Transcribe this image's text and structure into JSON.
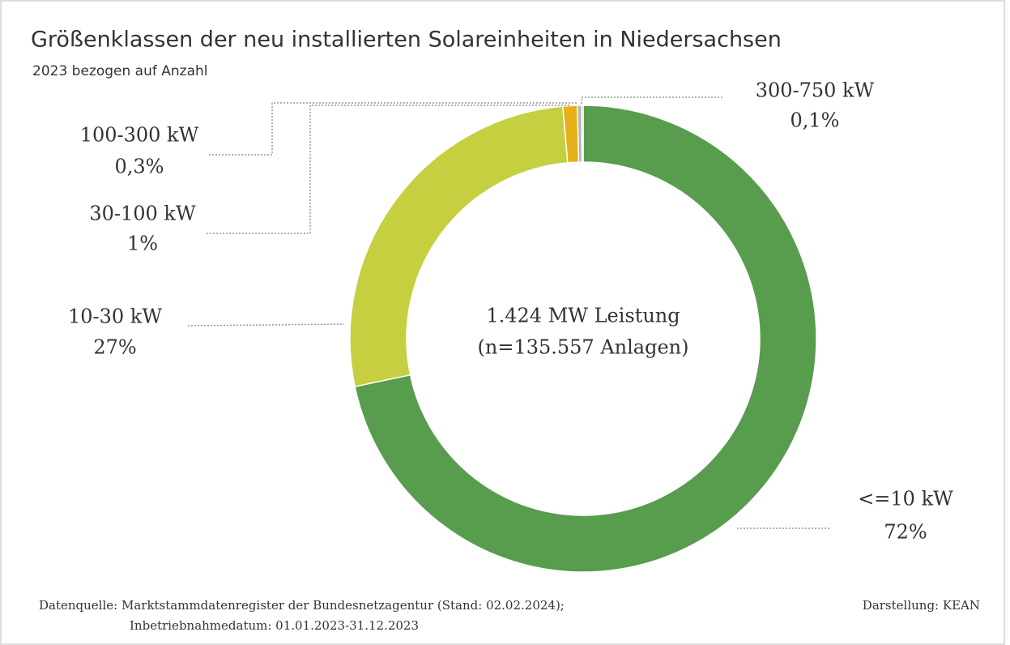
{
  "chart_data": {
    "type": "donut",
    "title": "Größenklassen der neu installierten Solareinheiten in Niedersachsen",
    "subtitle": "2023 bezogen auf Anzahl",
    "categories": [
      "<=10 kW",
      "10-30 kW",
      "30-100 kW",
      "100-300 kW",
      "300-750 kW"
    ],
    "values": [
      72,
      27,
      1,
      0.3,
      0.1
    ],
    "value_labels": [
      "72%",
      "27%",
      "1%",
      "0,3%",
      "0,1%"
    ],
    "colors": [
      "#589c4e",
      "#c5cf3f",
      "#e6b01b",
      "#b4b4b4",
      "#7c7c7c"
    ],
    "center_text": [
      "1.424 MW Leistung",
      "(n=135.557 Anlagen)"
    ],
    "source": [
      "Datenquelle: Marktstammdatenregister der Bundesnetzagentur (Stand: 02.02.2024);",
      "Inbetriebnahmedatum: 01.01.2023-31.12.2023"
    ],
    "credit": "Darstellung: KEAN"
  }
}
